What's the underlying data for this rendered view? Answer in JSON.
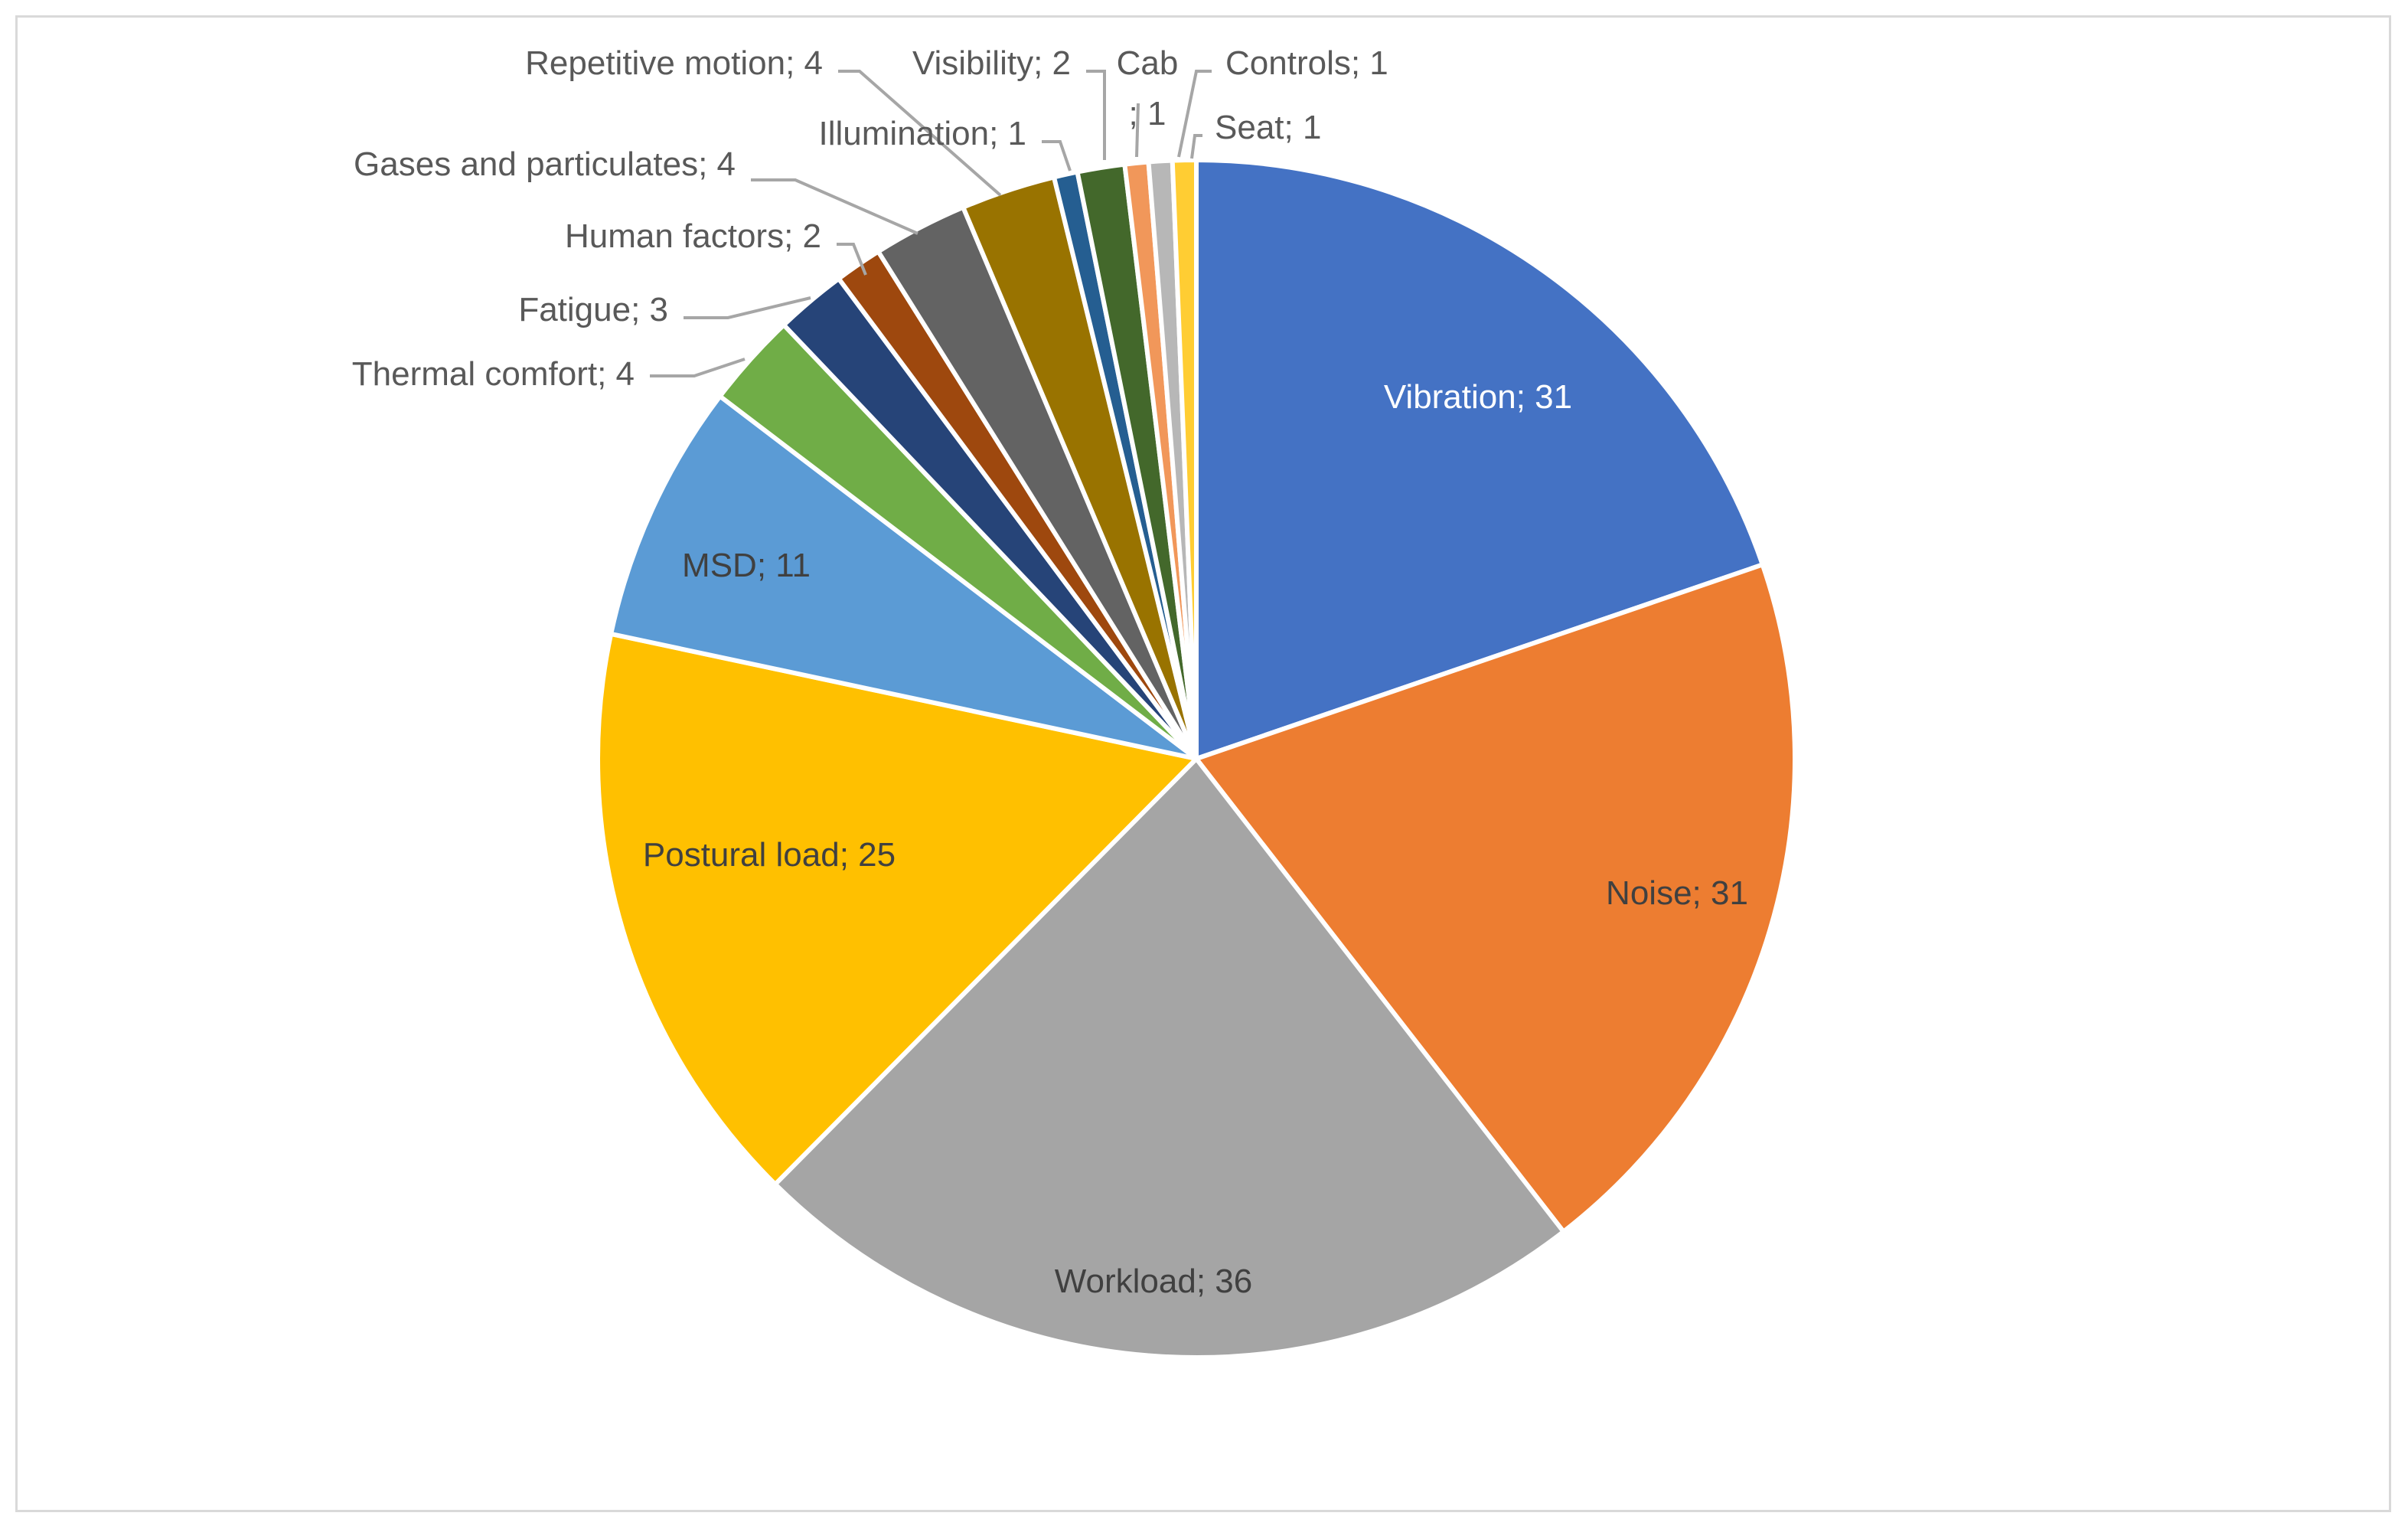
{
  "chart_data": {
    "type": "pie",
    "start_angle_deg": 0,
    "direction": "clockwise",
    "legend": "none",
    "slices": [
      {
        "label": "Vibration; 31",
        "value": 31,
        "color": "#4472C4"
      },
      {
        "label": "Noise; 31",
        "value": 31,
        "color": "#ED7D31"
      },
      {
        "label": "Workload; 36",
        "value": 36,
        "color": "#A5A5A5"
      },
      {
        "label": "Postural load; 25",
        "value": 25,
        "color": "#FFC000"
      },
      {
        "label": "MSD; 11",
        "value": 11,
        "color": "#5B9BD5"
      },
      {
        "label": "Thermal comfort; 4",
        "value": 4,
        "color": "#70AD47"
      },
      {
        "label": "Fatigue; 3",
        "value": 3,
        "color": "#264478"
      },
      {
        "label": "Human factors; 2",
        "value": 2,
        "color": "#9E480E"
      },
      {
        "label": "Gases and particulates; 4",
        "value": 4,
        "color": "#636363"
      },
      {
        "label": "Repetitive motion; 4",
        "value": 4,
        "color": "#997300"
      },
      {
        "label": "Illumination; 1",
        "value": 1,
        "color": "#255E91"
      },
      {
        "label": "Visibility; 2",
        "value": 2,
        "color": "#43682B"
      },
      {
        "label": "Cab; 1",
        "label_lines": [
          "Cab",
          "; 1"
        ],
        "value": 1,
        "color": "#F1975A"
      },
      {
        "label": "Controls; 1",
        "value": 1,
        "color": "#B7B7B7"
      },
      {
        "label": "Seat; 1",
        "value": 1,
        "color": "#FFCD33"
      }
    ]
  }
}
